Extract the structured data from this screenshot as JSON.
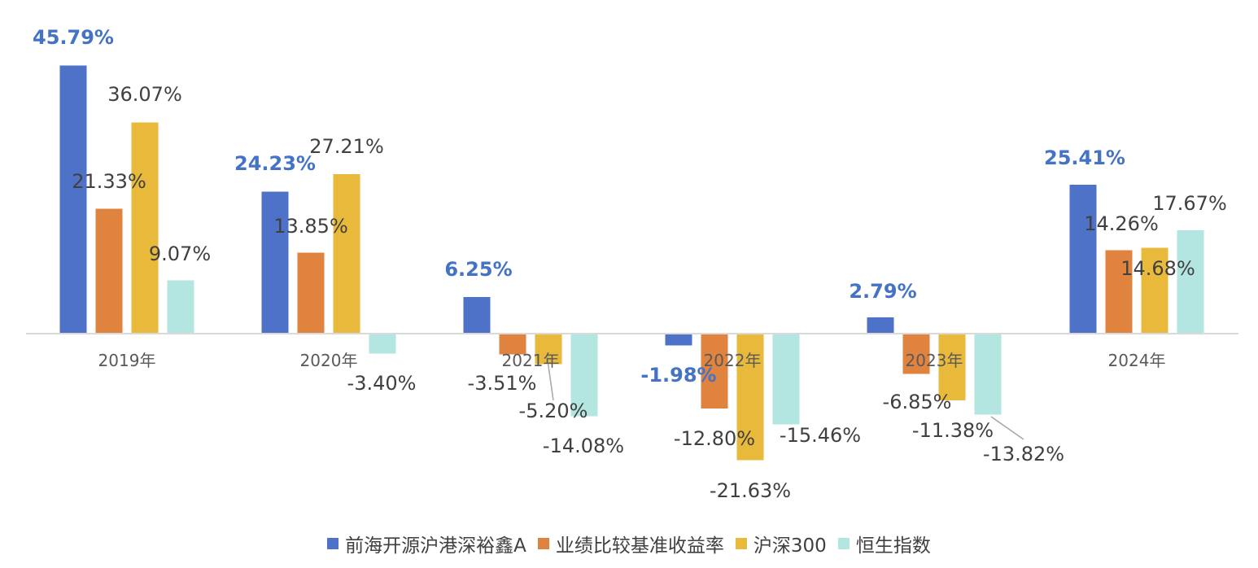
{
  "chart_data": {
    "type": "bar",
    "categories": [
      "2019年",
      "2020年",
      "2021年",
      "2022年",
      "2023年",
      "2024年"
    ],
    "series": [
      {
        "name": "前海开源沪港深裕鑫A",
        "color": "#4e72c7",
        "values": [
          45.79,
          24.23,
          6.25,
          -1.98,
          2.79,
          25.41
        ],
        "labels": [
          "45.79%",
          "24.23%",
          "6.25%",
          "-1.98%",
          "2.79%",
          "25.41%"
        ]
      },
      {
        "name": "业绩比较基准收益率",
        "color": "#e0833e",
        "values": [
          21.33,
          13.85,
          -3.51,
          -12.8,
          -6.85,
          14.26
        ],
        "labels": [
          "21.33%",
          "13.85%",
          "-3.51%",
          "-12.80%",
          "-6.85%",
          "14.26%"
        ]
      },
      {
        "name": "沪深300",
        "color": "#e8b93a",
        "values": [
          36.07,
          27.21,
          -5.2,
          -21.63,
          -11.38,
          14.68
        ],
        "labels": [
          "36.07%",
          "27.21%",
          "-5.20%",
          "-21.63%",
          "-11.38%",
          "14.68%"
        ]
      },
      {
        "name": "恒生指数",
        "color": "#b3e6e0",
        "values": [
          9.07,
          -3.4,
          -14.08,
          -15.46,
          -13.82,
          17.67
        ],
        "labels": [
          "9.07%",
          "-3.40%",
          "-14.08%",
          "-15.46%",
          "-13.82%",
          "17.67%"
        ]
      }
    ],
    "ylim": [
      -25,
      50
    ],
    "grid": false,
    "legend": "bottom",
    "title": "",
    "xlabel": "",
    "ylabel": ""
  }
}
